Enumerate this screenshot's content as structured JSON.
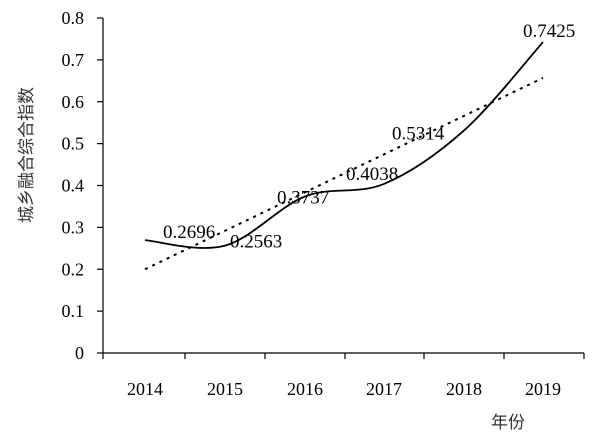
{
  "chart_data": {
    "type": "line",
    "xlabel": "年份",
    "ylabel": "城乡融合综合指数",
    "ylim": [
      0,
      0.8
    ],
    "yticks": [
      "0",
      "0.1",
      "0.2",
      "0.3",
      "0.4",
      "0.5",
      "0.6",
      "0.7",
      "0.8"
    ],
    "x": [
      "2014",
      "2015",
      "2016",
      "2017",
      "2018",
      "2019"
    ],
    "series": [
      {
        "values": [
          0.2696,
          0.2563,
          0.3737,
          0.4038,
          0.5314,
          0.7425
        ],
        "labels": [
          "0.2696",
          "0.2563",
          "0.3737",
          "0.4038",
          "0.5314",
          "0.7425"
        ],
        "style": "solid"
      },
      {
        "values": [
          0.2,
          0.657
        ],
        "x": [
          "2014",
          "2019"
        ],
        "style": "dotted"
      }
    ],
    "grid": false,
    "legend": "none",
    "colors": {
      "line": "#000000",
      "axis": "#000000"
    }
  }
}
